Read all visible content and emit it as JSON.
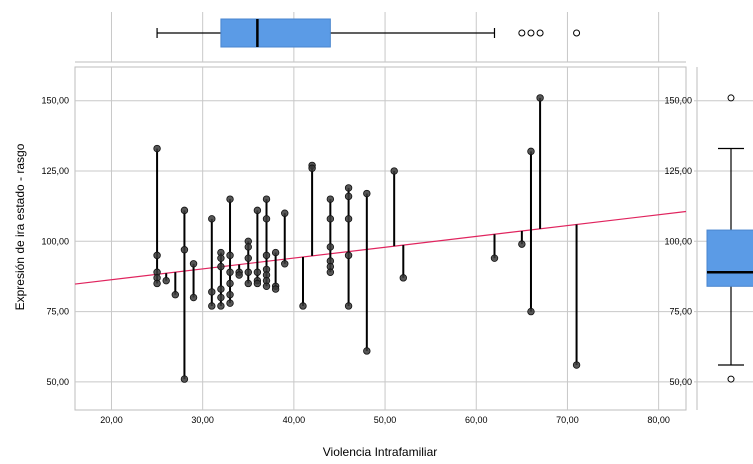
{
  "chart_data": {
    "type": "scatter",
    "xlabel": "Violencia Intrafamiliar",
    "ylabel": "Expresión de ira estado - rasgo",
    "xlim": [
      16,
      83
    ],
    "ylim": [
      40,
      162
    ],
    "xticks": [
      "20,00",
      "30,00",
      "40,00",
      "50,00",
      "60,00",
      "70,00",
      "80,00"
    ],
    "yticks": [
      "50,00",
      "75,00",
      "100,00",
      "125,00",
      "150,00"
    ],
    "grid": true,
    "colors": {
      "points": "#3a3a3a",
      "fit_line": "#e0245e",
      "box": "#5b9be6"
    },
    "fit_line": {
      "x": [
        16,
        83
      ],
      "y": [
        84.8,
        110.6
      ]
    },
    "points": [
      [
        25,
        133
      ],
      [
        25,
        95
      ],
      [
        25,
        89
      ],
      [
        25,
        87
      ],
      [
        25,
        85
      ],
      [
        26,
        86
      ],
      [
        27,
        81
      ],
      [
        28,
        111
      ],
      [
        28,
        97
      ],
      [
        28,
        51
      ],
      [
        29,
        92
      ],
      [
        29,
        80
      ],
      [
        31,
        108
      ],
      [
        31,
        82
      ],
      [
        31,
        77
      ],
      [
        32,
        96
      ],
      [
        32,
        94
      ],
      [
        32,
        91
      ],
      [
        32,
        83
      ],
      [
        32,
        80
      ],
      [
        32,
        77
      ],
      [
        33,
        115
      ],
      [
        33,
        95
      ],
      [
        33,
        89
      ],
      [
        33,
        85
      ],
      [
        33,
        81
      ],
      [
        33,
        78
      ],
      [
        34,
        89
      ],
      [
        34,
        88
      ],
      [
        35,
        100
      ],
      [
        35,
        98
      ],
      [
        35,
        94
      ],
      [
        35,
        89
      ],
      [
        35,
        85
      ],
      [
        36,
        111
      ],
      [
        36,
        89
      ],
      [
        36,
        86
      ],
      [
        36,
        85
      ],
      [
        37,
        115
      ],
      [
        37,
        108
      ],
      [
        37,
        95
      ],
      [
        37,
        90
      ],
      [
        37,
        88
      ],
      [
        37,
        86
      ],
      [
        37,
        84
      ],
      [
        38,
        96
      ],
      [
        38,
        84
      ],
      [
        38,
        83
      ],
      [
        39,
        110
      ],
      [
        39,
        92
      ],
      [
        41,
        77
      ],
      [
        42,
        127
      ],
      [
        42,
        126
      ],
      [
        44,
        115
      ],
      [
        44,
        108
      ],
      [
        44,
        98
      ],
      [
        44,
        93
      ],
      [
        44,
        91
      ],
      [
        44,
        89
      ],
      [
        46,
        119
      ],
      [
        46,
        116
      ],
      [
        46,
        108
      ],
      [
        46,
        95
      ],
      [
        46,
        77
      ],
      [
        48,
        117
      ],
      [
        48,
        61
      ],
      [
        51,
        125
      ],
      [
        52,
        87
      ],
      [
        62,
        94
      ],
      [
        65,
        99
      ],
      [
        66,
        132
      ],
      [
        66,
        75
      ],
      [
        67,
        151
      ],
      [
        71,
        56
      ]
    ],
    "x_boxplot": {
      "whisker_low": 25,
      "q1": 32,
      "median": 36,
      "q3": 44,
      "whisker_high": 62,
      "outliers": [
        65,
        66,
        67,
        71
      ]
    },
    "y_boxplot": {
      "whisker_low": 56,
      "q1": 84,
      "median": 89,
      "q3": 104,
      "whisker_high": 133,
      "outliers": [
        51,
        151
      ]
    }
  }
}
